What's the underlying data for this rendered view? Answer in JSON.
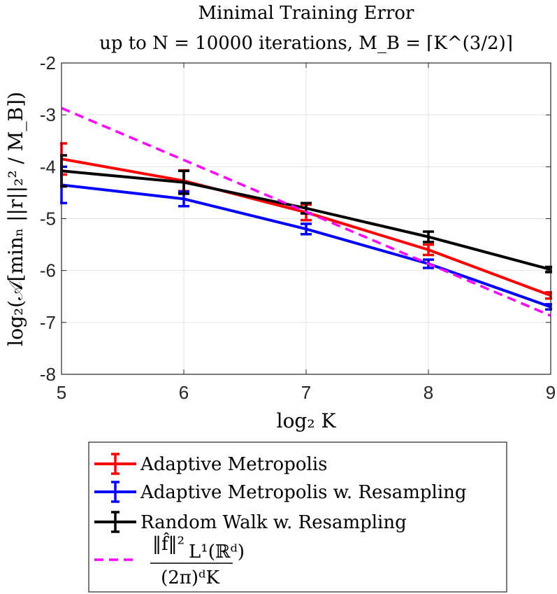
{
  "chart_data": {
    "type": "line",
    "title": [
      "Minimal Training Error",
      "up to N = 10000 iterations, M_B = ⌈K^(3/2)⌉"
    ],
    "xlabel": "log₂ K",
    "ylabel": "log₂(𝒜[minₙ ||r||₂² / M_B])",
    "x": [
      5,
      6,
      7,
      8,
      9
    ],
    "xlim": [
      5,
      9
    ],
    "ylim": [
      -8,
      -2
    ],
    "xticks": [
      5,
      6,
      7,
      8,
      9
    ],
    "yticks": [
      -2,
      -3,
      -4,
      -5,
      -6,
      -7,
      -8
    ],
    "grid": true,
    "legend_position": "below",
    "series": [
      {
        "name": "Adaptive Metropolis",
        "color": "#ff0000",
        "style": "solid",
        "values": [
          -3.85,
          -4.27,
          -4.88,
          -5.6,
          -6.48
        ],
        "errors": [
          0.3,
          0.2,
          0.15,
          0.1,
          0.06
        ]
      },
      {
        "name": "Adaptive Metropolis w. Resampling",
        "color": "#0000ff",
        "style": "solid",
        "values": [
          -4.35,
          -4.62,
          -5.2,
          -5.87,
          -6.7
        ],
        "errors": [
          0.35,
          0.14,
          0.1,
          0.08,
          0.05
        ]
      },
      {
        "name": "Random Walk w. Resampling",
        "color": "#000000",
        "style": "solid",
        "values": [
          -4.08,
          -4.3,
          -4.8,
          -5.35,
          -5.98
        ],
        "errors": [
          0.3,
          0.22,
          0.1,
          0.1,
          0.05
        ]
      },
      {
        "name": "||f̂||²_{L¹(ℝᵈ)} / ((2π)ᵈ K)",
        "color": "#ff00ff",
        "style": "dashed",
        "values": [
          -2.87,
          -3.87,
          -4.87,
          -5.87,
          -6.87
        ]
      }
    ],
    "legend_formula": {
      "numerator": "‖f̂‖²",
      "numerator_sub": "L¹(ℝᵈ)",
      "denominator": "(2π)ᵈK"
    }
  }
}
